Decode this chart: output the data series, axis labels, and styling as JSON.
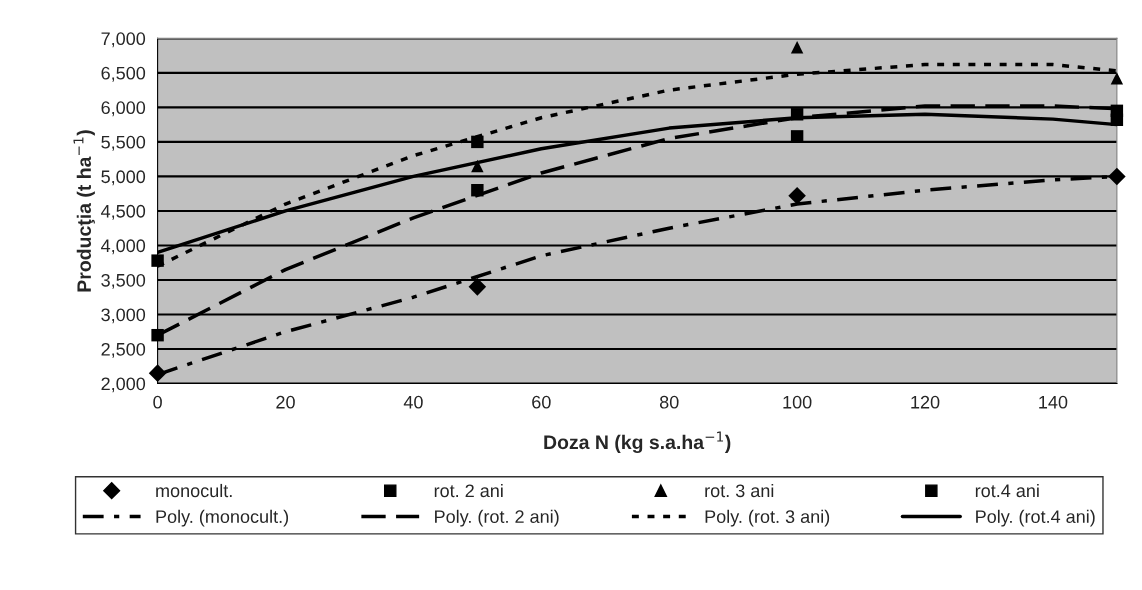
{
  "chart_data": {
    "type": "scatter",
    "xlabel": "Doza N (kg s.a.ha$^{−1}$)",
    "ylabel": "Producţia (t ha$^{−1}$)",
    "xlim": [
      0,
      150
    ],
    "xticks": [
      0,
      20,
      40,
      60,
      80,
      100,
      120,
      140
    ],
    "ylim": [
      2000,
      7000
    ],
    "yticks": [
      {
        "value": 2000,
        "label": "2,000"
      },
      {
        "value": 2500,
        "label": "2,500"
      },
      {
        "value": 3000,
        "label": "3,000"
      },
      {
        "value": 3500,
        "label": "3,500"
      },
      {
        "value": 4000,
        "label": "4,000"
      },
      {
        "value": 4500,
        "label": "4,500"
      },
      {
        "value": 5000,
        "label": "5,000"
      },
      {
        "value": 5500,
        "label": "5,500"
      },
      {
        "value": 6000,
        "label": "6,000"
      },
      {
        "value": 6500,
        "label": "6,500"
      },
      {
        "value": 7000,
        "label": "7,000"
      }
    ],
    "grid": "y",
    "legend": "bottom",
    "series": [
      {
        "name": "monocult.",
        "marker": "diamond",
        "color": "#000000",
        "x": [
          0,
          50,
          100,
          150
        ],
        "values": [
          2150,
          3400,
          4720,
          5000
        ]
      },
      {
        "name": "rot. 2 ani",
        "marker": "square",
        "color": "#000000",
        "x": [
          0,
          50,
          100,
          150
        ],
        "values": [
          2700,
          4800,
          5900,
          5950
        ]
      },
      {
        "name": "rot. 3 ani",
        "marker": "triangle",
        "color": "#000000",
        "x": [
          50,
          100,
          150
        ],
        "values": [
          5150,
          6870,
          6420
        ]
      },
      {
        "name": "rot.4 ani",
        "marker": "square",
        "color": "#000000",
        "x": [
          0,
          50,
          100,
          150
        ],
        "values": [
          3780,
          5500,
          5580,
          5820
        ]
      },
      {
        "name": "Poly. (monocult.)",
        "type": "line",
        "line_style": "dashdot",
        "color": "#000000",
        "x": [
          0,
          20,
          40,
          60,
          80,
          100,
          120,
          140,
          150
        ],
        "values": [
          2130,
          2750,
          3250,
          3850,
          4250,
          4600,
          4800,
          4950,
          5000
        ]
      },
      {
        "name": "Poly. (rot. 2 ani)",
        "type": "line",
        "line_style": "dashed",
        "color": "#000000",
        "x": [
          0,
          20,
          40,
          60,
          80,
          100,
          120,
          140,
          150
        ],
        "values": [
          2700,
          3650,
          4400,
          5050,
          5550,
          5850,
          6020,
          6020,
          5980
        ]
      },
      {
        "name": "Poly. (rot. 3 ani)",
        "type": "line",
        "line_style": "dotted",
        "color": "#000000",
        "x": [
          0,
          20,
          40,
          60,
          80,
          100,
          120,
          140,
          150
        ],
        "values": [
          3700,
          4600,
          5300,
          5850,
          6250,
          6480,
          6620,
          6620,
          6530
        ]
      },
      {
        "name": "Poly. (rot.4 ani)",
        "type": "line",
        "line_style": "solid",
        "color": "#000000",
        "x": [
          0,
          20,
          40,
          60,
          80,
          100,
          120,
          140,
          150
        ],
        "values": [
          3900,
          4500,
          5000,
          5400,
          5700,
          5850,
          5900,
          5830,
          5750
        ]
      }
    ]
  }
}
